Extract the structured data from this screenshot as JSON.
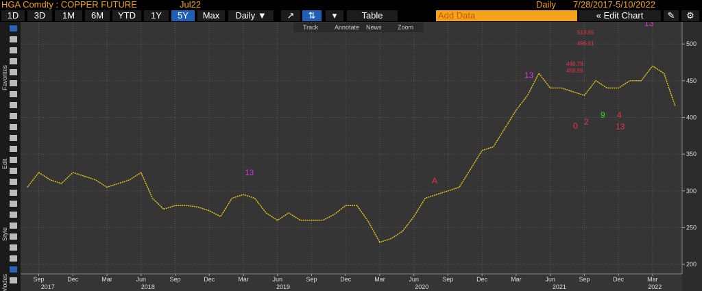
{
  "header": {
    "security": "HGA Comdty : COPPER FUTURE",
    "contract": "Jul22",
    "period": "Daily",
    "range": "7/28/2017-5/10/2022"
  },
  "toolbar": {
    "buttons": [
      "1D",
      "3D",
      "1M",
      "6M",
      "YTD",
      "1Y",
      "5Y",
      "Max"
    ],
    "selected": "5Y",
    "frequency": "Daily ▼",
    "table": "Table",
    "add_data": "Add Data",
    "edit_chart": "« Edit Chart",
    "sub": [
      "Track",
      "Annotate",
      "News",
      "Zoom"
    ],
    "side": [
      "Favorites",
      "Edit",
      "Style",
      "Modes"
    ]
  },
  "chart_data": {
    "type": "line",
    "x": [
      7,
      8,
      9,
      10,
      11,
      12,
      13,
      14,
      15,
      16,
      17,
      18,
      19,
      20,
      21,
      22,
      23,
      24,
      25,
      26,
      27,
      28,
      29,
      30,
      31,
      32,
      33,
      34,
      35,
      36,
      37,
      38,
      39,
      40,
      41,
      42,
      43,
      44,
      45,
      46,
      47,
      48,
      49,
      50,
      51,
      52,
      53,
      54,
      55,
      56,
      57,
      58,
      59,
      60,
      61,
      62,
      63,
      64
    ],
    "series": [
      {
        "name": "HGA Comdty",
        "color": "#e8c21a",
        "values": [
          305,
          325,
          315,
          310,
          325,
          320,
          315,
          305,
          310,
          315,
          325,
          290,
          275,
          280,
          280,
          278,
          273,
          265,
          290,
          295,
          290,
          270,
          260,
          270,
          260,
          260,
          260,
          268,
          280,
          280,
          258,
          230,
          235,
          245,
          265,
          290,
          295,
          300,
          305,
          330,
          355,
          360,
          385,
          410,
          430,
          460,
          440,
          440,
          435,
          430,
          450,
          440,
          440,
          450,
          450,
          470,
          460,
          415
        ]
      }
    ],
    "xlim": [
      6.4,
      64.6
    ],
    "ylim": [
      187,
      530
    ],
    "xticks": [
      {
        "value": 8,
        "label": "Sep"
      },
      {
        "value": 11,
        "label": "Dec"
      },
      {
        "value": 14,
        "label": "Mar"
      },
      {
        "value": 17,
        "label": "Jun"
      },
      {
        "value": 20,
        "label": "Sep"
      },
      {
        "value": 23,
        "label": "Dec"
      },
      {
        "value": 26,
        "label": "Mar"
      },
      {
        "value": 29,
        "label": "Jun"
      },
      {
        "value": 32,
        "label": "Sep"
      },
      {
        "value": 35,
        "label": "Dec"
      },
      {
        "value": 38,
        "label": "Mar"
      },
      {
        "value": 41,
        "label": "Jun"
      },
      {
        "value": 44,
        "label": "Sep"
      },
      {
        "value": 47,
        "label": "Dec"
      },
      {
        "value": 50,
        "label": "Mar"
      },
      {
        "value": 53,
        "label": "Jun"
      },
      {
        "value": 56,
        "label": "Sep"
      },
      {
        "value": 59,
        "label": "Dec"
      },
      {
        "value": 62,
        "label": "Mar"
      }
    ],
    "years": [
      {
        "value": 8.8,
        "label": "2017"
      },
      {
        "value": 17.6,
        "label": "2018"
      },
      {
        "value": 29.5,
        "label": "2019"
      },
      {
        "value": 41.7,
        "label": "2020"
      },
      {
        "value": 53.8,
        "label": "2021"
      },
      {
        "value": 62.2,
        "label": "2022"
      }
    ],
    "yticks": [
      200,
      250,
      300,
      350,
      400,
      450,
      500
    ],
    "grid": true,
    "annotations": [
      "513.65",
      "496.61",
      "468.78",
      "458.59",
      "0",
      "2",
      "9",
      "4",
      "13",
      "13",
      "13",
      "13",
      "A"
    ]
  }
}
